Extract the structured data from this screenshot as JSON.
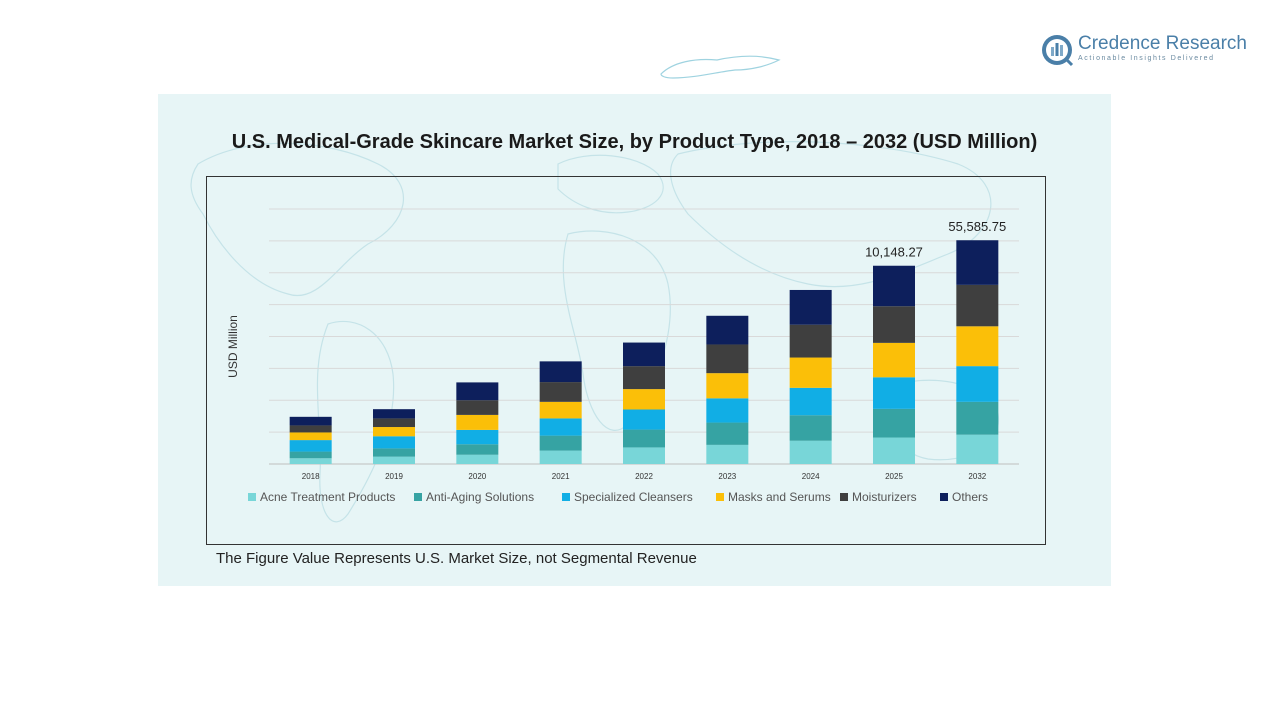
{
  "brand": {
    "name": "Credence Research",
    "tagline": "Actionable Insights Delivered",
    "colors": {
      "primary": "#4a7fa8",
      "secondary": "#7fa9c8"
    }
  },
  "footnote": "The Figure Value Represents U.S. Market Size, not Segmental Revenue",
  "chart_data": {
    "type": "bar",
    "stacked": true,
    "title": "U.S. Medical-Grade Skincare Market Size, by Product Type, 2018 – 2032 (USD Million)",
    "ylabel": "USD Million",
    "xlabel": "",
    "categories": [
      "2018",
      "2019",
      "2020",
      "2021",
      "2022",
      "2023",
      "2024",
      "2025",
      "2032"
    ],
    "ylim": [
      0,
      8000
    ],
    "grid": true,
    "legend_position": "bottom",
    "series": [
      {
        "name": "Acne Treatment Products",
        "color": "#78d6d8",
        "values": [
          180,
          230,
          290,
          420,
          520,
          600,
          730,
          830,
          920
        ]
      },
      {
        "name": "Anti-Aging Solutions",
        "color": "#36a3a3",
        "values": [
          210,
          260,
          330,
          470,
          560,
          700,
          800,
          900,
          1030
        ]
      },
      {
        "name": "Specialized Cleansers",
        "color": "#11aee5",
        "values": [
          360,
          380,
          450,
          540,
          630,
          760,
          860,
          990,
          1120
        ]
      },
      {
        "name": "Masks and Serums",
        "color": "#fbbf08",
        "values": [
          240,
          290,
          470,
          520,
          640,
          790,
          950,
          1080,
          1250
        ]
      },
      {
        "name": "Moisturizers",
        "color": "#3f3f3f",
        "values": [
          220,
          270,
          460,
          620,
          720,
          900,
          1030,
          1150,
          1300
        ]
      },
      {
        "name": "Others",
        "color": "#0d1f5c",
        "values": [
          270,
          290,
          560,
          650,
          740,
          900,
          1090,
          1270,
          1400
        ]
      }
    ],
    "annotations": [
      {
        "category": "2025",
        "text": "10,148.27"
      },
      {
        "category": "2032",
        "text": "55,585.75"
      }
    ]
  }
}
